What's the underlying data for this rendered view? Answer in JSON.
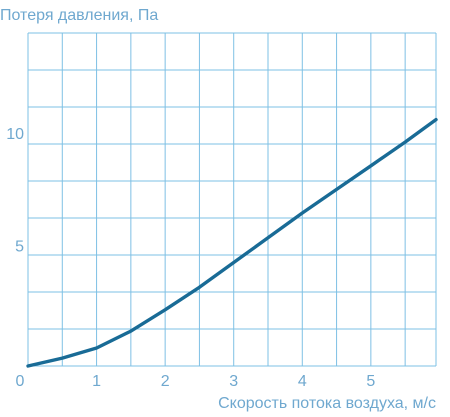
{
  "chart_data": {
    "type": "line",
    "title": "",
    "ylabel": "Потеря давления, Па",
    "xlabel": "Скорость потока воздуха, м/с",
    "xlim": [
      0,
      5.95
    ],
    "ylim": [
      0,
      14.8
    ],
    "grid": true,
    "x_tick_labels": [
      "0",
      "1",
      "2",
      "3",
      "4",
      "5"
    ],
    "y_tick_labels": [
      "5",
      "10"
    ],
    "series": [
      {
        "values_x": [
          0.0,
          0.5,
          1.0,
          1.5,
          2.0,
          2.5,
          3.0,
          3.5,
          4.0,
          4.5,
          5.0,
          5.5,
          5.95
        ],
        "values_y": [
          0.0,
          0.35,
          0.8,
          1.55,
          2.5,
          3.5,
          4.6,
          5.7,
          6.8,
          7.85,
          8.9,
          9.95,
          10.95
        ]
      }
    ],
    "colors": {
      "line": "#196b96",
      "grid": "#7ec0e4",
      "text": "#6fa8cf"
    }
  }
}
